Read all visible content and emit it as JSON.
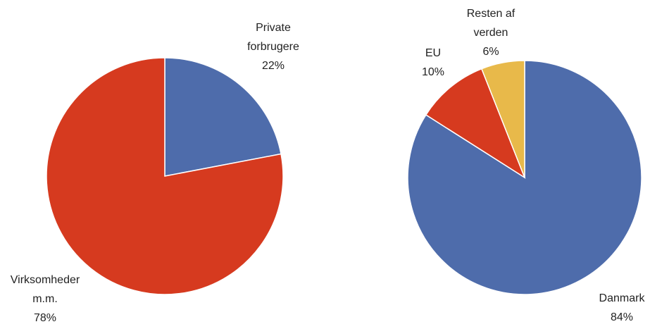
{
  "chart_data": [
    {
      "type": "pie",
      "title": "",
      "slices": [
        {
          "label": [
            "Private",
            "forbrugere"
          ],
          "value": 22,
          "value_label": "22%",
          "color": "#4E6CAB"
        },
        {
          "label": [
            "Virksomheder",
            "m.m."
          ],
          "value": 78,
          "value_label": "78%",
          "color": "#D63A1F"
        }
      ]
    },
    {
      "type": "pie",
      "title": "",
      "slices": [
        {
          "label": [
            "Danmark"
          ],
          "value": 84,
          "value_label": "84%",
          "color": "#4E6CAB"
        },
        {
          "label": [
            "EU"
          ],
          "value": 10,
          "value_label": "10%",
          "color": "#D63A1F"
        },
        {
          "label": [
            "Resten af",
            "verden"
          ],
          "value": 6,
          "value_label": "6%",
          "color": "#E8B94A"
        }
      ]
    }
  ]
}
